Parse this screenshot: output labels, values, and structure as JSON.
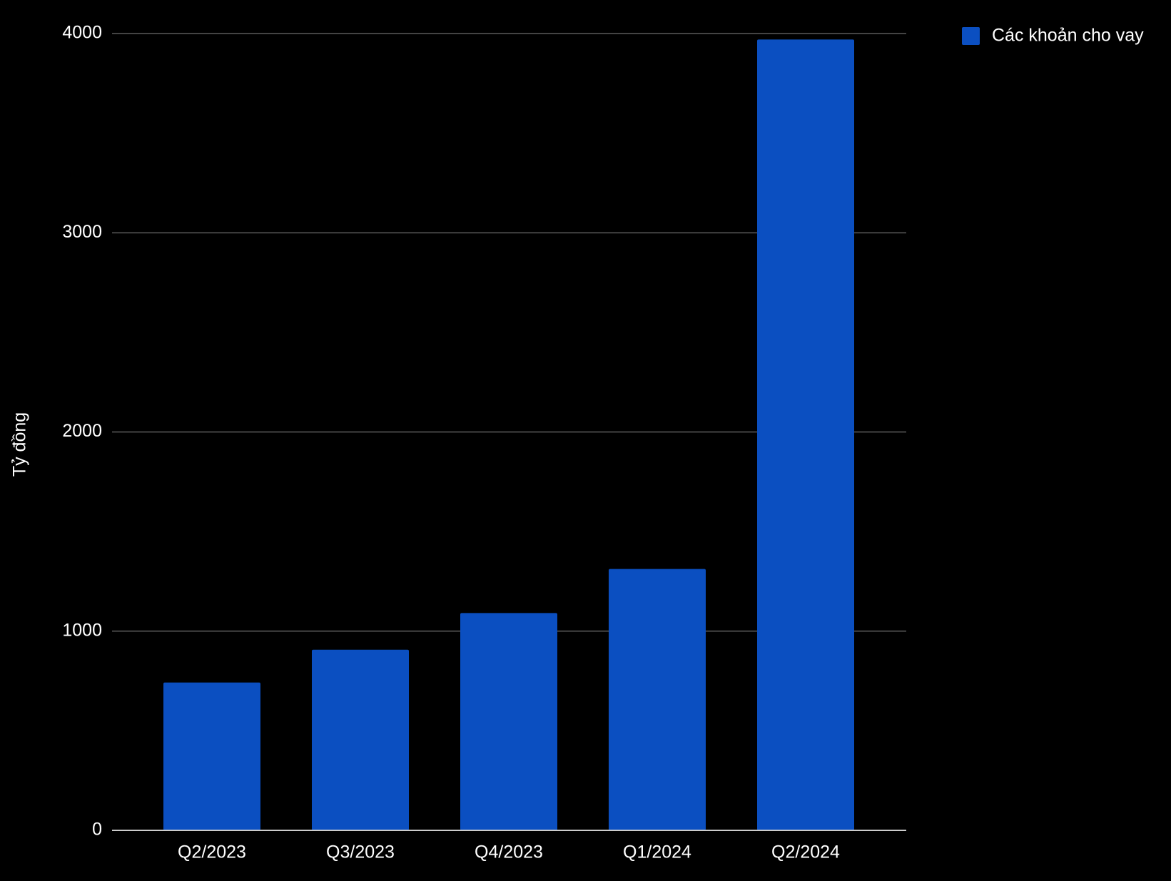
{
  "chart_data": {
    "type": "bar",
    "y_axis_label": "Tỷ đồng",
    "categories": [
      "Q2/2023",
      "Q3/2023",
      "Q4/2023",
      "Q1/2024",
      "Q2/2024"
    ],
    "series": [
      {
        "name": "Các khoản cho vay",
        "color": "#0b4fc1",
        "values": [
          742,
          907,
          1091,
          1312,
          3970
        ]
      }
    ],
    "ylim": [
      0,
      4000
    ],
    "yticks": [
      0,
      1000,
      2000,
      3000,
      4000
    ],
    "grid": true,
    "legend": "top-right"
  }
}
